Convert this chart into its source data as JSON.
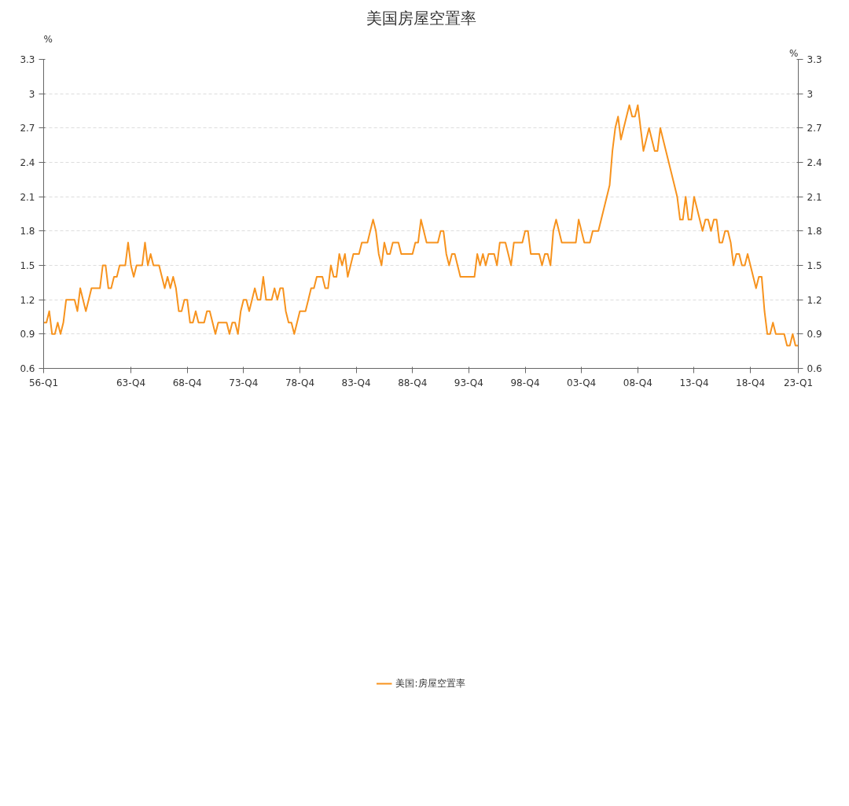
{
  "chart_data": {
    "type": "line",
    "title": "美国房屋空置率",
    "ylabel": "%",
    "y2label": "%",
    "categories": [
      "56-Q1",
      null,
      null,
      null,
      null,
      null,
      null,
      null,
      null,
      null,
      null,
      null,
      null,
      null,
      null,
      null,
      null,
      null,
      null,
      null,
      null,
      null,
      null,
      null,
      null,
      null,
      null,
      null,
      null,
      null,
      null,
      "63-Q4",
      null,
      null,
      null,
      null,
      null,
      null,
      null,
      null,
      null,
      null,
      null,
      null,
      null,
      null,
      null,
      null,
      null,
      null,
      null,
      "68-Q4",
      null,
      null,
      null,
      null,
      null,
      null,
      null,
      null,
      null,
      null,
      null,
      null,
      null,
      null,
      null,
      null,
      null,
      null,
      null,
      "73-Q4",
      null,
      null,
      null,
      null,
      null,
      null,
      null,
      null,
      null,
      null,
      null,
      null,
      null,
      null,
      null,
      null,
      null,
      null,
      null,
      "78-Q4",
      null,
      null,
      null,
      null,
      null,
      null,
      null,
      null,
      null,
      null,
      null,
      null,
      null,
      null,
      null,
      null,
      null,
      null,
      null,
      "83-Q4",
      null,
      null,
      null,
      null,
      null,
      null,
      null,
      null,
      null,
      null,
      null,
      null,
      null,
      null,
      null,
      null,
      null,
      null,
      null,
      "88-Q4",
      null,
      null,
      null,
      null,
      null,
      null,
      null,
      null,
      null,
      null,
      null,
      null,
      null,
      null,
      null,
      null,
      null,
      null,
      null,
      "93-Q4",
      null,
      null,
      null,
      null,
      null,
      null,
      null,
      null,
      null,
      null,
      null,
      null,
      null,
      null,
      null,
      null,
      null,
      null,
      null,
      "98-Q4",
      null,
      null,
      null,
      null,
      null,
      null,
      null,
      null,
      null,
      null,
      null,
      null,
      null,
      null,
      null,
      null,
      null,
      null,
      null,
      "03-Q4",
      null,
      null,
      null,
      null,
      null,
      null,
      null,
      null,
      null,
      null,
      null,
      null,
      null,
      null,
      null,
      null,
      null,
      null,
      null,
      "08-Q4",
      null,
      null,
      null,
      null,
      null,
      null,
      null,
      null,
      null,
      null,
      null,
      null,
      null,
      null,
      null,
      null,
      null,
      null,
      null,
      "13-Q4",
      null,
      null,
      null,
      null,
      null,
      null,
      null,
      null,
      null,
      null,
      null,
      null,
      null,
      null,
      null,
      null,
      null,
      null,
      null,
      "18-Q4",
      null,
      null,
      null,
      null,
      null,
      null,
      null,
      null,
      null,
      null,
      null,
      null,
      null,
      null,
      null,
      null,
      "23-Q1"
    ],
    "series": [
      {
        "name": "美国:房屋空置率",
        "color": "#f7931e",
        "values": [
          1.0,
          1.0,
          1.1,
          0.9,
          0.9,
          1.0,
          0.9,
          1.0,
          1.2,
          1.2,
          1.2,
          1.2,
          1.1,
          1.3,
          1.2,
          1.1,
          1.2,
          1.3,
          1.3,
          1.3,
          1.3,
          1.5,
          1.5,
          1.3,
          1.3,
          1.4,
          1.4,
          1.5,
          1.5,
          1.5,
          1.7,
          1.5,
          1.4,
          1.5,
          1.5,
          1.5,
          1.7,
          1.5,
          1.6,
          1.5,
          1.5,
          1.5,
          1.4,
          1.3,
          1.4,
          1.3,
          1.4,
          1.3,
          1.1,
          1.1,
          1.2,
          1.2,
          1.0,
          1.0,
          1.1,
          1.0,
          1.0,
          1.0,
          1.1,
          1.1,
          1.0,
          0.9,
          1.0,
          1.0,
          1.0,
          1.0,
          0.9,
          1.0,
          1.0,
          0.9,
          1.1,
          1.2,
          1.2,
          1.1,
          1.2,
          1.3,
          1.2,
          1.2,
          1.4,
          1.2,
          1.2,
          1.2,
          1.3,
          1.2,
          1.3,
          1.3,
          1.1,
          1.0,
          1.0,
          0.9,
          1.0,
          1.1,
          1.1,
          1.1,
          1.2,
          1.3,
          1.3,
          1.4,
          1.4,
          1.4,
          1.3,
          1.3,
          1.5,
          1.4,
          1.4,
          1.6,
          1.5,
          1.6,
          1.4,
          1.5,
          1.6,
          1.6,
          1.6,
          1.7,
          1.7,
          1.7,
          1.8,
          1.9,
          1.8,
          1.6,
          1.5,
          1.7,
          1.6,
          1.6,
          1.7,
          1.7,
          1.7,
          1.6,
          1.6,
          1.6,
          1.6,
          1.6,
          1.7,
          1.7,
          1.9,
          1.8,
          1.7,
          1.7,
          1.7,
          1.7,
          1.7,
          1.8,
          1.8,
          1.6,
          1.5,
          1.6,
          1.6,
          1.5,
          1.4,
          1.4,
          1.4,
          1.4,
          1.4,
          1.4,
          1.6,
          1.5,
          1.6,
          1.5,
          1.6,
          1.6,
          1.6,
          1.5,
          1.7,
          1.7,
          1.7,
          1.6,
          1.5,
          1.7,
          1.7,
          1.7,
          1.7,
          1.8,
          1.8,
          1.6,
          1.6,
          1.6,
          1.6,
          1.5,
          1.6,
          1.6,
          1.5,
          1.8,
          1.9,
          1.8,
          1.7,
          1.7,
          1.7,
          1.7,
          1.7,
          1.7,
          1.9,
          1.8,
          1.7,
          1.7,
          1.7,
          1.8,
          1.8,
          1.8,
          1.9,
          2.0,
          2.1,
          2.2,
          2.5,
          2.7,
          2.8,
          2.6,
          2.7,
          2.8,
          2.9,
          2.8,
          2.8,
          2.9,
          2.7,
          2.5,
          2.6,
          2.7,
          2.6,
          2.5,
          2.5,
          2.7,
          2.6,
          2.5,
          2.4,
          2.3,
          2.2,
          2.1,
          1.9,
          1.9,
          2.1,
          1.9,
          1.9,
          2.1,
          2.0,
          1.9,
          1.8,
          1.9,
          1.9,
          1.8,
          1.9,
          1.9,
          1.7,
          1.7,
          1.8,
          1.8,
          1.7,
          1.5,
          1.6,
          1.6,
          1.5,
          1.5,
          1.6,
          1.5,
          1.4,
          1.3,
          1.4,
          1.4,
          1.1,
          0.9,
          0.9,
          1.0,
          0.9,
          0.9,
          0.9,
          0.9,
          0.8,
          0.8,
          0.9,
          0.8,
          0.8
        ]
      }
    ],
    "ylim": [
      0.6,
      3.3
    ],
    "yticks": [
      0.6,
      0.9,
      1.2,
      1.5,
      1.8,
      2.1,
      2.4,
      2.7,
      3,
      3.3
    ],
    "y2lim": [
      0.6,
      3.3
    ],
    "y2ticks": [
      0.6,
      0.9,
      1.2,
      1.5,
      1.8,
      2.1,
      2.4,
      2.7,
      3,
      3.3
    ],
    "grid": "y",
    "legend": "bottom",
    "marker": "none",
    "line_style": "solid"
  }
}
